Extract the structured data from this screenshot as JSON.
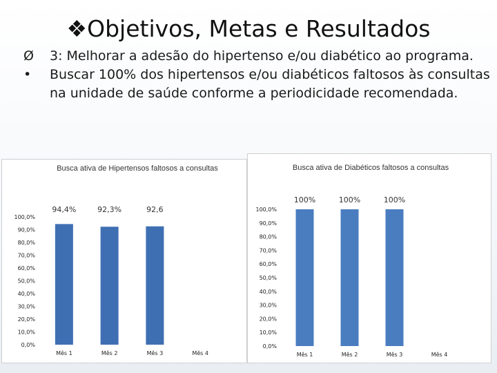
{
  "slide": {
    "title_symbol": "❖",
    "title": "Objetivos, Metas e Resultados",
    "bullets": [
      {
        "marker": "Ø",
        "text": "3: Melhorar a adesão do hipertenso e/ou diabético ao programa."
      },
      {
        "marker": "•",
        "text": "Buscar 100% dos hipertensos e/ou diabéticos faltosos às consultas na unidade de saúde conforme a periodicidade recomendada."
      }
    ]
  },
  "chart_data": [
    {
      "type": "bar",
      "title": "Busca ativa de Hipertensos faltosos a consultas",
      "categories": [
        "Mês 1",
        "Mês 2",
        "Mês 3",
        "Mês 4"
      ],
      "values": [
        94.4,
        92.3,
        92.6,
        null
      ],
      "data_labels": [
        "94,4%",
        "92,3%",
        "92,6",
        ""
      ],
      "yticks": [
        "0,0%",
        "10,0%",
        "20,0%",
        "30,0%",
        "40,0%",
        "50,0%",
        "60,0%",
        "70,0%",
        "80,0%",
        "90,0%",
        "100,0%"
      ],
      "ylim": [
        0,
        100
      ],
      "grid": false,
      "bar_color": "#3f6fb3"
    },
    {
      "type": "bar",
      "title": "Busca ativa de Diabéticos faltosos a consultas",
      "categories": [
        "Mês 1",
        "Mês 2",
        "Mês 3",
        "Mês 4"
      ],
      "values": [
        100,
        100,
        100,
        null
      ],
      "data_labels": [
        "100%",
        "100%",
        "100%",
        ""
      ],
      "yticks": [
        "0,0%",
        "10,0%",
        "20,0%",
        "30,0%",
        "40,0%",
        "50,0%",
        "60,0%",
        "70,0%",
        "80,0%",
        "90,0%",
        "100,0%"
      ],
      "ylim": [
        0,
        100
      ],
      "grid": false,
      "bar_color": "#4a7cc0"
    }
  ]
}
